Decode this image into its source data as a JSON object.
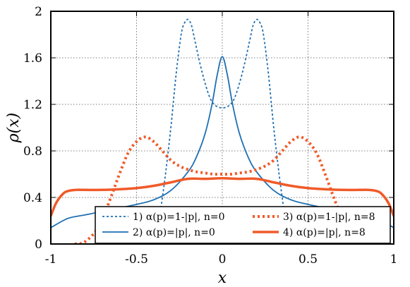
{
  "chart_data": {
    "type": "line",
    "xlabel": "x",
    "ylabel": "ρ(x)",
    "xlim": [
      -1,
      1
    ],
    "ylim": [
      0,
      2
    ],
    "xticks": [
      -1,
      -0.5,
      0,
      0.5,
      1
    ],
    "xtick_labels": [
      "-1",
      "-0.5",
      "0",
      "0.5",
      "1"
    ],
    "yticks": [
      0,
      0.4,
      0.8,
      1.2,
      1.6,
      2
    ],
    "ytick_labels": [
      "0",
      "0.4",
      "0.8",
      "1.2",
      "1.6",
      "2"
    ],
    "grid": true,
    "legend_position": "bottom-right",
    "series": [
      {
        "name": "1) α(p)=1-|p|, n=0",
        "color": "#1f6fb2",
        "style": "dotted-thin",
        "x": [
          -0.42,
          -0.38,
          -0.34,
          -0.3,
          -0.27,
          -0.24,
          -0.22,
          -0.2,
          -0.18,
          -0.16,
          -0.13,
          -0.1,
          -0.07,
          -0.04,
          0,
          0.04,
          0.07,
          0.1,
          0.13,
          0.16,
          0.18,
          0.2,
          0.22,
          0.24,
          0.27,
          0.3,
          0.34,
          0.38,
          0.42
        ],
        "y": [
          0,
          0.12,
          0.5,
          1.0,
          1.45,
          1.8,
          1.9,
          1.93,
          1.88,
          1.75,
          1.55,
          1.38,
          1.25,
          1.19,
          1.17,
          1.19,
          1.25,
          1.38,
          1.55,
          1.75,
          1.88,
          1.93,
          1.9,
          1.8,
          1.45,
          1.0,
          0.5,
          0.12,
          0
        ]
      },
      {
        "name": "2) α(p)=|p|, n=0",
        "color": "#1f6fb2",
        "style": "solid-thin",
        "x": [
          -1,
          -0.9,
          -0.8,
          -0.7,
          -0.6,
          -0.5,
          -0.4,
          -0.3,
          -0.2,
          -0.15,
          -0.1,
          -0.06,
          -0.03,
          0,
          0.03,
          0.06,
          0.1,
          0.15,
          0.2,
          0.3,
          0.4,
          0.5,
          0.6,
          0.7,
          0.8,
          0.9,
          1
        ],
        "y": [
          0.14,
          0.22,
          0.25,
          0.28,
          0.31,
          0.34,
          0.38,
          0.46,
          0.62,
          0.75,
          0.95,
          1.2,
          1.45,
          1.61,
          1.45,
          1.2,
          0.95,
          0.75,
          0.62,
          0.46,
          0.38,
          0.34,
          0.31,
          0.28,
          0.25,
          0.22,
          0.14
        ]
      },
      {
        "name": "3) α(p)=1-|p|, n=8",
        "color": "#f05a28",
        "style": "dotted-thick",
        "x": [
          -0.86,
          -0.8,
          -0.72,
          -0.65,
          -0.6,
          -0.55,
          -0.5,
          -0.45,
          -0.4,
          -0.35,
          -0.3,
          -0.25,
          -0.2,
          -0.15,
          -0.1,
          -0.05,
          0,
          0.05,
          0.1,
          0.15,
          0.2,
          0.25,
          0.3,
          0.35,
          0.4,
          0.45,
          0.5,
          0.55,
          0.6,
          0.65,
          0.72,
          0.8,
          0.86
        ],
        "y": [
          0,
          0.02,
          0.15,
          0.4,
          0.6,
          0.78,
          0.88,
          0.92,
          0.88,
          0.8,
          0.72,
          0.67,
          0.64,
          0.62,
          0.61,
          0.6,
          0.6,
          0.6,
          0.61,
          0.62,
          0.64,
          0.67,
          0.72,
          0.8,
          0.88,
          0.92,
          0.88,
          0.78,
          0.6,
          0.4,
          0.15,
          0.02,
          0
        ]
      },
      {
        "name": "4) α(p)=|p|, n=8",
        "color": "#f05a28",
        "style": "solid-thick",
        "x": [
          -1,
          -0.97,
          -0.93,
          -0.9,
          -0.85,
          -0.8,
          -0.7,
          -0.6,
          -0.5,
          -0.4,
          -0.3,
          -0.2,
          -0.1,
          0,
          0.1,
          0.2,
          0.3,
          0.4,
          0.5,
          0.6,
          0.7,
          0.8,
          0.85,
          0.9,
          0.93,
          0.97,
          1
        ],
        "y": [
          0.24,
          0.35,
          0.43,
          0.455,
          0.465,
          0.465,
          0.465,
          0.47,
          0.48,
          0.5,
          0.53,
          0.56,
          0.56,
          0.565,
          0.56,
          0.56,
          0.53,
          0.5,
          0.48,
          0.47,
          0.465,
          0.465,
          0.465,
          0.455,
          0.43,
          0.35,
          0.24
        ]
      }
    ]
  }
}
